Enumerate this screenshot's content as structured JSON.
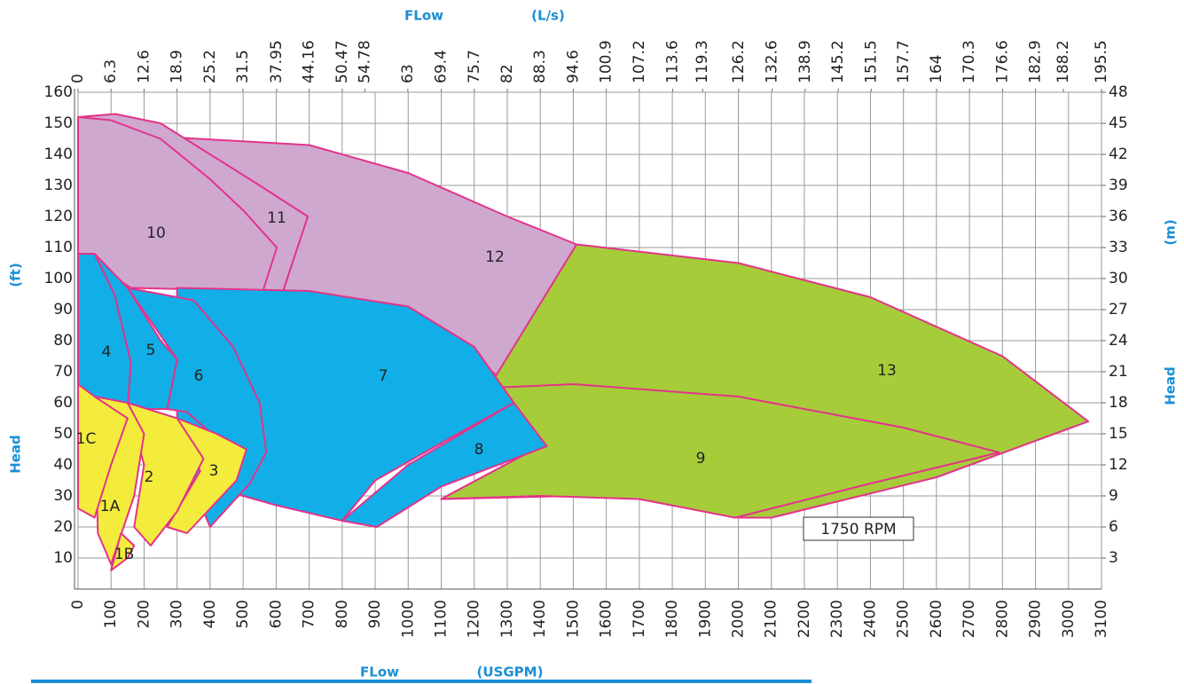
{
  "chart_data": {
    "type": "region",
    "x_title": "FLow",
    "x_unit": "(USGPM)",
    "x2_title": "FLow",
    "x2_unit": "(L/s)",
    "y_title": "Head",
    "y_unit": "(ft)",
    "y2_title": "Head",
    "y2_unit": "(m)",
    "annotation": "1750 RPM",
    "xlim": [
      0,
      3100
    ],
    "xticks": [
      0,
      100,
      200,
      300,
      400,
      500,
      600,
      700,
      800,
      900,
      1000,
      1100,
      1200,
      1300,
      1400,
      1500,
      1600,
      1700,
      1800,
      1900,
      2000,
      2100,
      2200,
      2300,
      2400,
      2500,
      2600,
      2700,
      2800,
      2900,
      3000,
      3100
    ],
    "x2lim": [
      0,
      195.5
    ],
    "x2ticks": [
      0,
      6.3,
      12.6,
      18.9,
      25.2,
      31.5,
      37.95,
      44.16,
      50.47,
      54.78,
      63,
      69.4,
      75.7,
      82,
      88.3,
      94.6,
      100.9,
      107.2,
      113.6,
      119.3,
      126.2,
      132.6,
      138.9,
      145.2,
      151.5,
      157.7,
      164,
      170.3,
      176.6,
      182.9,
      188.2,
      195.5
    ],
    "ylim": [
      0,
      160
    ],
    "yticks": [
      10,
      20,
      30,
      40,
      50,
      60,
      70,
      80,
      90,
      100,
      110,
      120,
      130,
      140,
      150,
      160
    ],
    "y2lim": [
      0,
      48
    ],
    "y2ticks": [
      3,
      6,
      9,
      12,
      15,
      18,
      21,
      24,
      27,
      30,
      33,
      36,
      39,
      42,
      45,
      48
    ],
    "grid": true,
    "outline_color": "#e3338a",
    "series": [
      {
        "name": "12",
        "color": "#cfa8cf",
        "x": [
          200,
          700,
          1000,
          1300,
          1510,
          1280,
          1000,
          700,
          400,
          200
        ],
        "y": [
          146,
          143,
          134,
          120,
          111,
          68,
          89,
          95,
          97,
          97
        ]
      },
      {
        "name": "11",
        "color": "#cfa8cf",
        "x": [
          0,
          113,
          250,
          400,
          550,
          696,
          618,
          560
        ],
        "y": [
          152,
          153,
          150,
          140,
          130,
          120,
          95,
          96
        ]
      },
      {
        "name": "10",
        "color": "#cfa8cf",
        "x": [
          0,
          100,
          250,
          400,
          500,
          602,
          560,
          160,
          0
        ],
        "y": [
          152,
          151,
          145,
          132,
          122,
          110,
          96,
          97,
          108
        ]
      },
      {
        "name": "13",
        "color": "#a6cc3a",
        "x": [
          1250,
          1510,
          2000,
          2400,
          2800,
          3060,
          2600,
          2100,
          2000,
          1700,
          1500,
          1100,
          1400,
          1290
        ],
        "y": [
          66,
          111,
          105,
          94,
          75,
          54,
          36,
          23,
          23,
          29,
          30,
          29,
          46,
          58
        ]
      },
      {
        "name": "9",
        "color": "#a6cc3a",
        "x": [
          1290,
          1500,
          2000,
          2500,
          2790,
          2400,
          1990,
          1700,
          1400,
          1100,
          1400,
          1290
        ],
        "y": [
          65,
          66,
          62,
          52,
          44,
          34,
          23,
          29,
          30,
          29,
          46,
          58
        ]
      },
      {
        "name": "7",
        "color": "#12aee8",
        "x": [
          300,
          700,
          1000,
          1200,
          1320,
          1100,
          900,
          800,
          600,
          400,
          300
        ],
        "y": [
          97,
          96,
          91,
          78,
          60,
          47,
          35,
          22,
          27,
          33,
          35
        ]
      },
      {
        "name": "8",
        "color": "#12aee8",
        "x": [
          800,
          1000,
          1320,
          1420,
          1100,
          905
        ],
        "y": [
          22,
          40,
          60,
          46,
          33,
          20
        ]
      },
      {
        "name": "6",
        "color": "#12aee8",
        "x": [
          150,
          350,
          470,
          550,
          570,
          520,
          400,
          380,
          460,
          330,
          270,
          300
        ],
        "y": [
          97,
          93,
          78,
          60,
          44,
          34,
          20,
          25,
          45,
          57,
          58,
          74
        ]
      },
      {
        "name": "5",
        "color": "#12aee8",
        "x": [
          50,
          150,
          250,
          300,
          270,
          150,
          160,
          110
        ],
        "y": [
          108,
          97,
          80,
          74,
          58,
          58,
          73,
          95
        ]
      },
      {
        "name": "4",
        "color": "#12aee8",
        "x": [
          0,
          50,
          110,
          160,
          150,
          0
        ],
        "y": [
          108,
          108,
          95,
          73,
          58,
          58
        ]
      },
      {
        "name": "3",
        "color": "#f4ec3c",
        "x": [
          300,
          420,
          510,
          480,
          330,
          270,
          370
        ],
        "y": [
          55,
          50,
          45,
          35,
          18,
          20,
          38
        ]
      },
      {
        "name": "2",
        "color": "#f4ec3c",
        "x": [
          150,
          300,
          380,
          300,
          220,
          170,
          200
        ],
        "y": [
          60,
          55,
          42,
          25,
          14,
          20,
          40
        ]
      },
      {
        "name": "1A",
        "color": "#f4ec3c",
        "x": [
          50,
          150,
          200,
          170,
          100,
          60
        ],
        "y": [
          62,
          60,
          50,
          30,
          8,
          18
        ]
      },
      {
        "name": "1B",
        "color": "#f4ec3c",
        "x": [
          100,
          150,
          170,
          130
        ],
        "y": [
          6,
          10,
          14,
          18
        ]
      },
      {
        "name": "1C",
        "color": "#f4ec3c",
        "x": [
          0,
          50,
          150,
          100,
          50,
          0
        ],
        "y": [
          66,
          62,
          55,
          40,
          23,
          26
        ]
      }
    ]
  }
}
